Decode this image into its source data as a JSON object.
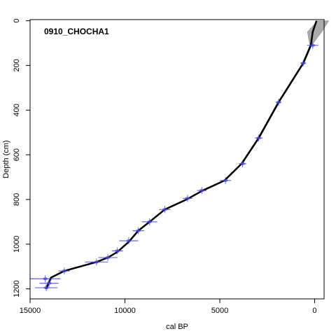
{
  "chart_data": {
    "type": "line",
    "title": "0910_CHOCHA1",
    "xlabel": "cal BP",
    "ylabel": "Depth (cm)",
    "xlim": [
      15000,
      -500
    ],
    "ylim": [
      -5,
      1245
    ],
    "x_reversed": true,
    "y_reversed": true,
    "x_ticks": [
      15000,
      10000,
      5000,
      0
    ],
    "y_ticks": [
      0,
      200,
      400,
      600,
      800,
      1000,
      1200
    ],
    "grid": false,
    "colors": {
      "model_line": "#000000",
      "uncertainty_band": "#aaaaaa",
      "dates": "#4040e0"
    },
    "age_depth_model": {
      "depth": [
        0,
        50,
        110,
        190,
        365,
        525,
        640,
        715,
        760,
        800,
        845,
        900,
        940,
        990,
        1035,
        1060,
        1080,
        1120,
        1150,
        1180,
        1200
      ],
      "age": [
        -100,
        100,
        200,
        600,
        1900,
        2950,
        3850,
        4750,
        5900,
        6750,
        7900,
        8700,
        9300,
        9800,
        10400,
        10900,
        11500,
        13200,
        13900,
        14050,
        14150
      ],
      "band_upper_age": [
        -750,
        -380,
        150,
        550,
        1850,
        2900,
        3800,
        4700,
        5850,
        6700,
        7850,
        8650,
        9250,
        9750,
        10350,
        10850,
        11450,
        13150,
        13850,
        14000,
        14100
      ],
      "band_lower_age": [
        -150,
        380,
        250,
        650,
        1950,
        3000,
        3900,
        4800,
        5950,
        6800,
        7950,
        8750,
        9350,
        9850,
        10450,
        10950,
        11550,
        13250,
        13950,
        14100,
        14200
      ]
    },
    "dated_samples": [
      {
        "depth": 110,
        "age": 100,
        "err": 300
      },
      {
        "depth": 190,
        "age": 600,
        "err": 150
      },
      {
        "depth": 365,
        "age": 1900,
        "err": 150
      },
      {
        "depth": 525,
        "age": 2950,
        "err": 200
      },
      {
        "depth": 640,
        "age": 3800,
        "err": 200
      },
      {
        "depth": 715,
        "age": 4700,
        "err": 300
      },
      {
        "depth": 760,
        "age": 5950,
        "err": 250
      },
      {
        "depth": 795,
        "age": 6700,
        "err": 250
      },
      {
        "depth": 845,
        "age": 7900,
        "err": 300
      },
      {
        "depth": 900,
        "age": 8700,
        "err": 400
      },
      {
        "depth": 940,
        "age": 9300,
        "err": 300
      },
      {
        "depth": 985,
        "age": 9800,
        "err": 500
      },
      {
        "depth": 1030,
        "age": 10400,
        "err": 300
      },
      {
        "depth": 1060,
        "age": 10900,
        "err": 500
      },
      {
        "depth": 1080,
        "age": 11500,
        "err": 600
      },
      {
        "depth": 1120,
        "age": 13200,
        "err": 300
      },
      {
        "depth": 1155,
        "age": 14200,
        "err": 800
      },
      {
        "depth": 1175,
        "age": 14000,
        "err": 500
      },
      {
        "depth": 1195,
        "age": 14150,
        "err": 600
      }
    ]
  }
}
